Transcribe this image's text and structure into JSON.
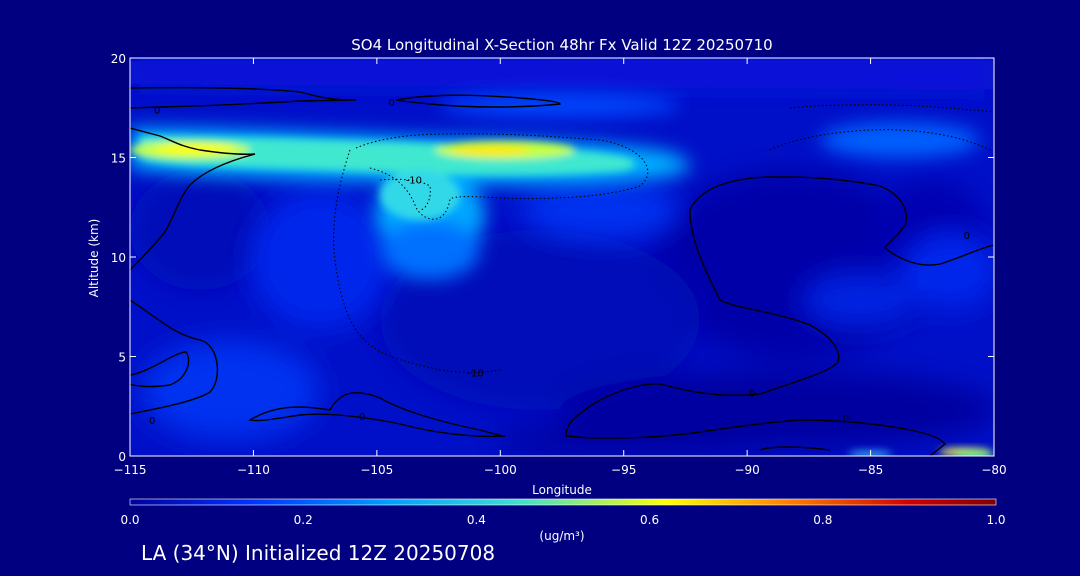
{
  "footer": {
    "note": "LA (34°N) Initialized 12Z 20250708"
  },
  "chart_data": {
    "type": "heatmap",
    "title": "SO4 Longitudinal X-Section 48hr  Fx Valid 12Z 20250710",
    "xlabel": "Longitude",
    "ylabel": "Altitude (km)",
    "xlim": [
      -115,
      -80
    ],
    "ylim": [
      0,
      20
    ],
    "x_ticks": [
      -115,
      -110,
      -105,
      -100,
      -95,
      -90,
      -85,
      -80
    ],
    "y_ticks": [
      0,
      5,
      10,
      15,
      20
    ],
    "colorbar": {
      "label": "(ug/m³)",
      "range": [
        0.0,
        1.0
      ],
      "tick_labels": [
        "0.0",
        "0.2",
        "0.4",
        "0.6",
        "0.8",
        "1.0"
      ],
      "tick_values": [
        0.0,
        0.2,
        0.4,
        0.6,
        0.8,
        1.0
      ],
      "colors": [
        "#0000a0",
        "#0033ff",
        "#00a0ff",
        "#40e0d0",
        "#ffff00",
        "#ff8000",
        "#d00000",
        "#800000"
      ]
    },
    "contour_labels": [
      {
        "text": "0",
        "lon": -113.9,
        "alt": 17.4
      },
      {
        "text": "0",
        "lon": -104.4,
        "alt": 17.8
      },
      {
        "text": "-10",
        "lon": -103.5,
        "alt": 13.9
      },
      {
        "text": "-10",
        "lon": -101.0,
        "alt": 4.2
      },
      {
        "text": "0",
        "lon": -114.1,
        "alt": 1.8
      },
      {
        "text": "0",
        "lon": -105.6,
        "alt": 2.0
      },
      {
        "text": "0",
        "lon": -89.8,
        "alt": 3.2
      },
      {
        "text": "0",
        "lon": -86.0,
        "alt": 1.9
      },
      {
        "text": "0",
        "lon": -81.1,
        "alt": 11.1
      }
    ],
    "concentration_maxima": [
      {
        "lon": -112.0,
        "alt": 15.6,
        "value": 0.55
      },
      {
        "lon": -100.5,
        "alt": 15.3,
        "value": 0.55
      },
      {
        "lon": -102.5,
        "alt": 13.0,
        "value": 0.3
      },
      {
        "lon": -82.0,
        "alt": 0.1,
        "value": 0.45
      }
    ]
  }
}
